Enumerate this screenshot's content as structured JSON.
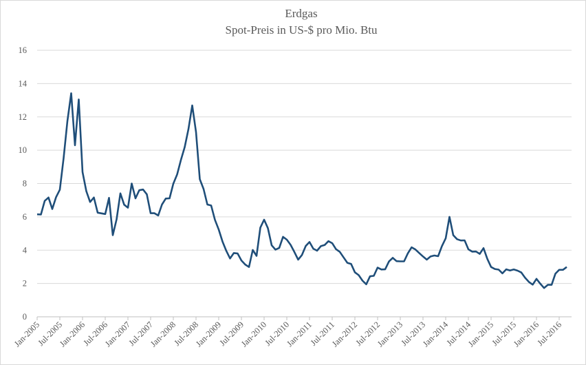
{
  "chart_data": {
    "type": "line",
    "title": "Erdgas",
    "subtitle": "Spot-Preis in US-$ pro Mio. Btu",
    "xlabel": "",
    "ylabel": "",
    "ylim": [
      0,
      16
    ],
    "yticks": [
      "0",
      "2",
      "4",
      "6",
      "8",
      "10",
      "12",
      "14",
      "16"
    ],
    "grid": true,
    "legend": "none",
    "line_color": "#1f4e79",
    "x_start": "Jan-2005",
    "x_end": "Sep-2016",
    "xtick_labels": [
      "Jan-2005",
      "Jul-2005",
      "Jan-2006",
      "Jul-2006",
      "Jan-2007",
      "Jul-2007",
      "Jan-2008",
      "Jul-2008",
      "Jan-2009",
      "Jul-2009",
      "Jan-2010",
      "Jul-2010",
      "Jan-2011",
      "Jul-2011",
      "Jan-2012",
      "Jul-2012",
      "Jan-2013",
      "Jul-2013",
      "Jan-2014",
      "Jul-2014",
      "Jan-2015",
      "Jul-2015",
      "Jan-2016",
      "Jul-2016"
    ],
    "series": [
      {
        "values": [
          6.15,
          6.14,
          6.96,
          7.16,
          6.47,
          7.18,
          7.63,
          9.53,
          11.75,
          13.42,
          10.3,
          13.05,
          8.69,
          7.54,
          6.89,
          7.16,
          6.25,
          6.21,
          6.17,
          7.14,
          4.9,
          5.85,
          7.41,
          6.73,
          6.55,
          8.0,
          7.11,
          7.6,
          7.64,
          7.35,
          6.22,
          6.22,
          6.08,
          6.74,
          7.1,
          7.11,
          7.99,
          8.54,
          9.41,
          10.18,
          11.27,
          12.69,
          11.09,
          8.26,
          7.67,
          6.74,
          6.68,
          5.82,
          5.24,
          4.52,
          3.96,
          3.5,
          3.83,
          3.8,
          3.38,
          3.14,
          2.99,
          4.01,
          3.66,
          5.35,
          5.83,
          5.32,
          4.29,
          4.03,
          4.14,
          4.8,
          4.63,
          4.32,
          3.89,
          3.43,
          3.71,
          4.25,
          4.49,
          4.09,
          3.97,
          4.24,
          4.31,
          4.54,
          4.42,
          4.06,
          3.9,
          3.57,
          3.24,
          3.17,
          2.67,
          2.5,
          2.17,
          1.95,
          2.43,
          2.46,
          2.95,
          2.84,
          2.85,
          3.32,
          3.54,
          3.34,
          3.33,
          3.33,
          3.81,
          4.17,
          4.04,
          3.83,
          3.62,
          3.43,
          3.62,
          3.68,
          3.64,
          4.24,
          4.71,
          6.0,
          4.9,
          4.66,
          4.58,
          4.59,
          4.05,
          3.91,
          3.92,
          3.78,
          4.12,
          3.48,
          2.99,
          2.87,
          2.83,
          2.61,
          2.85,
          2.78,
          2.84,
          2.77,
          2.66,
          2.34,
          2.09,
          1.93,
          2.28,
          1.99,
          1.73,
          1.92,
          1.92,
          2.59,
          2.82,
          2.82,
          2.99
        ]
      }
    ]
  }
}
